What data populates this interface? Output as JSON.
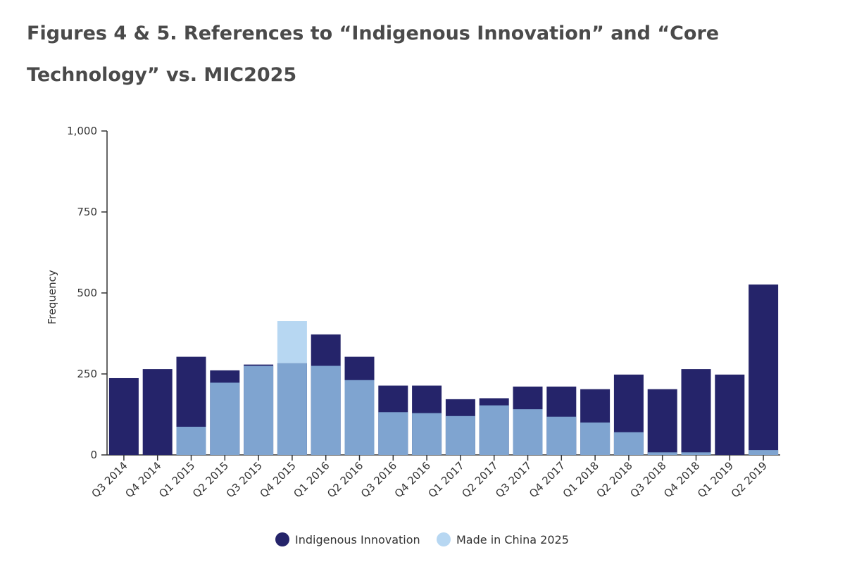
{
  "title": "Figures 4 & 5. References to “Indigenous Innovation” and “Core Technology” vs. MIC2025",
  "chart_data": {
    "type": "bar",
    "stacked": false,
    "overlapping": true,
    "categories": [
      "Q3 2014",
      "Q4 2014",
      "Q1 2015",
      "Q2 2015",
      "Q3 2015",
      "Q4 2015",
      "Q1 2016",
      "Q2 2016",
      "Q3 2016",
      "Q4 2016",
      "Q1 2017",
      "Q2 2017",
      "Q3 2017",
      "Q4 2017",
      "Q1 2018",
      "Q2 2018",
      "Q3 2018",
      "Q4 2018",
      "Q1 2019",
      "Q2 2019"
    ],
    "series": [
      {
        "name": "Indigenous Innovation",
        "color": "#25246a",
        "values": [
          237,
          265,
          303,
          261,
          279,
          283,
          372,
          303,
          214,
          214,
          172,
          175,
          211,
          211,
          203,
          248,
          203,
          265,
          248,
          526
        ]
      },
      {
        "name": "Made in China 2025",
        "color": "#b7d7f2",
        "overlap_color": "#7fa4d0",
        "values": [
          0,
          0,
          87,
          223,
          275,
          413,
          275,
          231,
          132,
          129,
          120,
          153,
          141,
          118,
          100,
          70,
          8,
          8,
          0,
          15
        ]
      }
    ],
    "ylabel": "Frequency",
    "xlabel": "",
    "ylim": [
      0,
      1000
    ],
    "yticks": [
      0,
      250,
      500,
      750,
      1000
    ],
    "ytick_labels": [
      "0",
      "250",
      "500",
      "750",
      "1,000"
    ],
    "grid": false,
    "legend": "bottom-center"
  }
}
